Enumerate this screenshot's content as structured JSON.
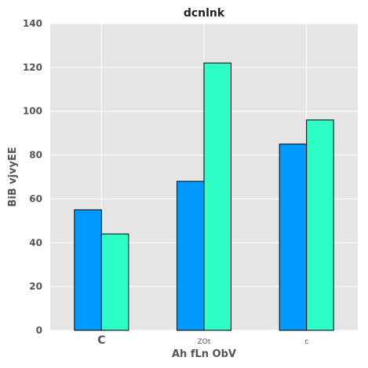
{
  "chart_data": {
    "type": "bar",
    "title": "dcnlnk",
    "xlabel": "Ah fLn ObV",
    "ylabel": "BiB vjvyEE",
    "categories": [
      "C",
      "ZOt",
      "c"
    ],
    "series": [
      {
        "values": [
          55,
          68,
          85
        ],
        "color": "#0099FF"
      },
      {
        "values": [
          44,
          122,
          96
        ],
        "color": "#2EFFC7"
      }
    ],
    "ylim": [
      0,
      140
    ],
    "yticks": [
      0,
      20,
      40,
      60,
      80,
      100,
      120,
      140
    ],
    "grid": true,
    "background": "#E5E5E5"
  }
}
